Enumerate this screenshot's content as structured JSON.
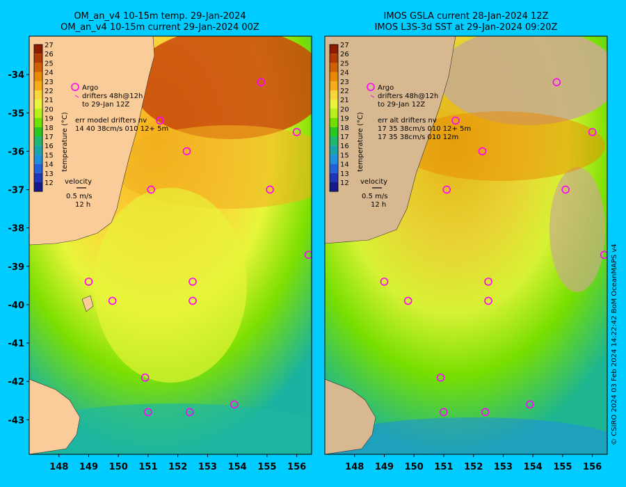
{
  "left_panel": {
    "title_line1": "OM_an_v4  10-15m temp. 29-Jan-2024",
    "title_line2": "OM_an_v4  10-15m current 29-Jan-2024 00Z",
    "legend": {
      "argo": "Argo",
      "drifters": "drifters 48h@12h",
      "drifters_to": "to 29-Jan 12Z",
      "err_label": "err model drifters nv",
      "err_line1": "14 40 38cm/s 010 12+ 5m",
      "err_line2": ""
    }
  },
  "right_panel": {
    "title_line1": "IMOS GSLA current 28-Jan-2024 12Z",
    "title_line2": "IMOS L3S-3d SST at 29-Jan-2024 09:20Z",
    "legend": {
      "argo": "Argo",
      "drifters": "drifters 48h@12h",
      "drifters_to": "to 29-Jan 12Z",
      "err_label": "err alt drifters nv",
      "err_line1": "17 35 38cm/s 010 12+ 5m",
      "err_line2": "17 35 38cm/s 010 12m"
    }
  },
  "colorbar": {
    "label": "temperature (°C)",
    "ticks": [
      "27",
      "26",
      "25",
      "24",
      "23",
      "22",
      "21",
      "20",
      "19",
      "18",
      "17",
      "16",
      "15",
      "14",
      "13",
      "12"
    ],
    "colors": [
      "#8b1c00",
      "#b03a00",
      "#cf5f00",
      "#e98a00",
      "#f7ad1a",
      "#fbd63a",
      "#e8f53a",
      "#b8f01a",
      "#6fe000",
      "#27c820",
      "#20b870",
      "#1aa6a8",
      "#1e90e0",
      "#2060d8",
      "#1f36b8",
      "#151a8a"
    ]
  },
  "velocity_key": {
    "label": "velocity",
    "speed": "0.5 m/s",
    "time": "12 h"
  },
  "axes": {
    "lon_ticks": [
      "148",
      "149",
      "150",
      "151",
      "152",
      "153",
      "154",
      "155",
      "156"
    ],
    "lat_ticks": [
      "-34",
      "-35",
      "-36",
      "-37",
      "-38",
      "-39",
      "-40",
      "-41",
      "-42",
      "-43"
    ],
    "lon_range": [
      147.0,
      156.5
    ],
    "lat_range": [
      -43.9,
      -33.0
    ]
  },
  "argo_floats": [
    {
      "lon": 154.8,
      "lat": -34.2
    },
    {
      "lon": 151.4,
      "lat": -35.2
    },
    {
      "lon": 156.0,
      "lat": -35.5
    },
    {
      "lon": 152.3,
      "lat": -36.0
    },
    {
      "lon": 151.1,
      "lat": -37.0
    },
    {
      "lon": 155.1,
      "lat": -37.0
    },
    {
      "lon": 156.4,
      "lat": -38.7
    },
    {
      "lon": 149.0,
      "lat": -39.4
    },
    {
      "lon": 152.5,
      "lat": -39.4
    },
    {
      "lon": 149.8,
      "lat": -39.9
    },
    {
      "lon": 152.5,
      "lat": -39.9
    },
    {
      "lon": 150.9,
      "lat": -41.9
    },
    {
      "lon": 153.9,
      "lat": -42.6
    },
    {
      "lon": 151.0,
      "lat": -42.8
    },
    {
      "lon": 152.4,
      "lat": -42.8
    }
  ],
  "map_colors": {
    "land": "#f9cc9a",
    "land_right": "#d8b890",
    "cloud_mask": "#c8ad8a",
    "argo_marker": "#ff00ff",
    "background": "#00ccff"
  },
  "credit": "© CSIRO 2024   03 Feb 2024 14:22:42 BoM OceanMAPS v4"
}
